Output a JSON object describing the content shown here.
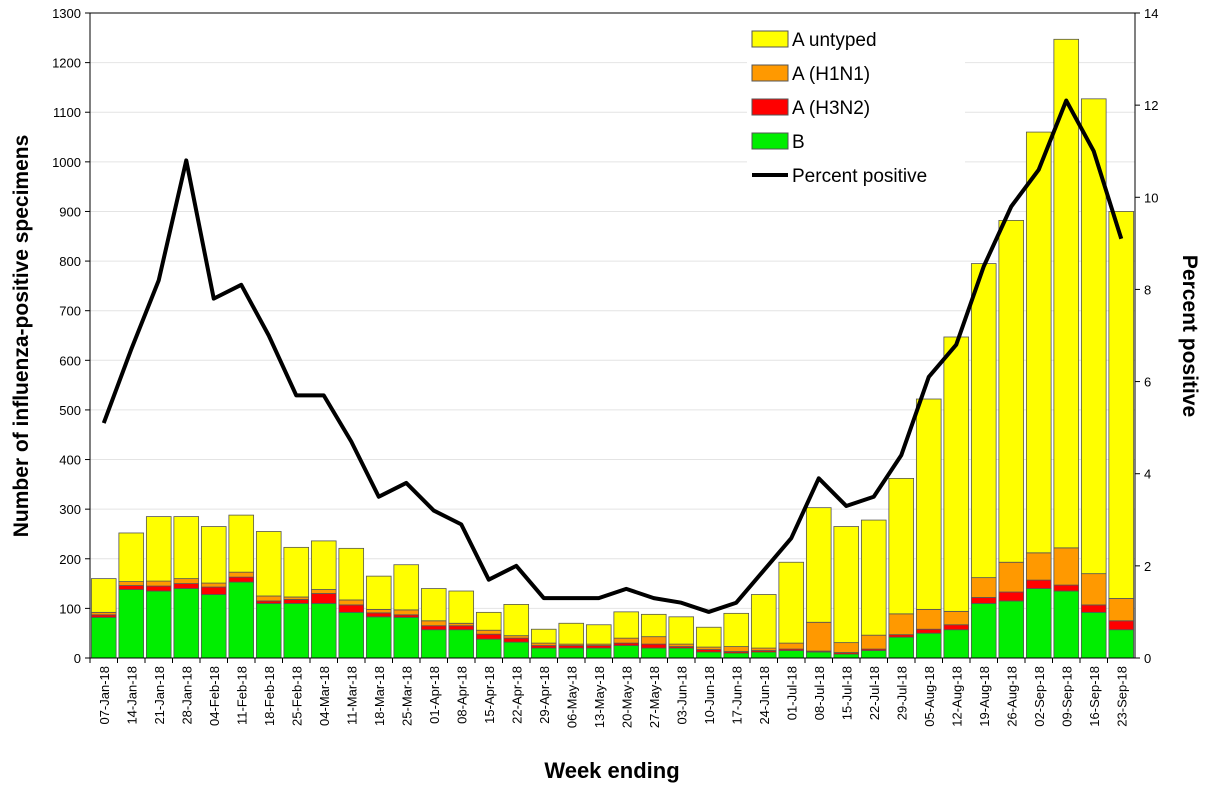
{
  "chart_data": {
    "type": "bar",
    "stacked": true,
    "x_label": "Week ending",
    "y_label": "Number of influenza-positive specimens",
    "y2_label": "Percent positive",
    "categories": [
      "07-Jan-18",
      "14-Jan-18",
      "21-Jan-18",
      "28-Jan-18",
      "04-Feb-18",
      "11-Feb-18",
      "18-Feb-18",
      "25-Feb-18",
      "04-Mar-18",
      "11-Mar-18",
      "18-Mar-18",
      "25-Mar-18",
      "01-Apr-18",
      "08-Apr-18",
      "15-Apr-18",
      "22-Apr-18",
      "29-Apr-18",
      "06-May-18",
      "13-May-18",
      "20-May-18",
      "27-May-18",
      "03-Jun-18",
      "10-Jun-18",
      "17-Jun-18",
      "24-Jun-18",
      "01-Jul-18",
      "08-Jul-18",
      "15-Jul-18",
      "22-Jul-18",
      "29-Jul-18",
      "05-Aug-18",
      "12-Aug-18",
      "19-Aug-18",
      "26-Aug-18",
      "02-Sep-18",
      "09-Sep-18",
      "16-Sep-18",
      "23-Sep-18"
    ],
    "series": [
      {
        "name": "A untyped",
        "color": "#ffff00",
        "values": [
          68,
          98,
          130,
          125,
          114,
          115,
          130,
          100,
          98,
          104,
          67,
          91,
          65,
          65,
          36,
          63,
          28,
          42,
          39,
          53,
          45,
          55,
          40,
          67,
          108,
          163,
          231,
          234,
          232,
          273,
          424,
          553,
          633,
          689,
          848,
          1025,
          957,
          780
        ]
      },
      {
        "name": "A (H1N1)",
        "color": "#ff9900",
        "values": [
          5,
          8,
          10,
          10,
          8,
          10,
          10,
          5,
          8,
          10,
          7,
          10,
          10,
          5,
          8,
          5,
          5,
          3,
          3,
          10,
          15,
          5,
          5,
          10,
          5,
          12,
          58,
          20,
          28,
          42,
          40,
          27,
          40,
          60,
          55,
          75,
          63,
          45
        ]
      },
      {
        "name": "A (H3N2)",
        "color": "#ff0000",
        "values": [
          5,
          8,
          10,
          10,
          15,
          10,
          5,
          8,
          20,
          15,
          8,
          5,
          8,
          8,
          10,
          8,
          5,
          5,
          5,
          5,
          8,
          3,
          5,
          3,
          3,
          3,
          2,
          3,
          3,
          5,
          8,
          10,
          12,
          18,
          17,
          12,
          15,
          18
        ]
      },
      {
        "name": "B",
        "color": "#00ee00",
        "values": [
          82,
          138,
          135,
          140,
          128,
          153,
          110,
          110,
          110,
          92,
          83,
          82,
          57,
          57,
          38,
          32,
          20,
          20,
          20,
          25,
          20,
          20,
          12,
          10,
          12,
          15,
          12,
          8,
          15,
          42,
          50,
          57,
          110,
          115,
          140,
          135,
          92,
          57
        ]
      },
      {
        "name": "Percent positive",
        "type": "line",
        "axis": "y2",
        "color": "#000000",
        "values": [
          5.1,
          6.7,
          8.2,
          10.8,
          7.8,
          8.1,
          7.0,
          5.7,
          5.7,
          4.7,
          3.5,
          3.8,
          3.2,
          2.9,
          1.7,
          2.0,
          1.3,
          1.3,
          1.3,
          1.5,
          1.3,
          1.2,
          1.0,
          1.2,
          1.9,
          2.6,
          3.9,
          3.3,
          3.5,
          4.4,
          6.1,
          6.8,
          8.5,
          9.8,
          10.6,
          12.1,
          11.0,
          9.1
        ]
      }
    ],
    "ylim": [
      0,
      1300
    ],
    "yticks": [
      0,
      100,
      200,
      300,
      400,
      500,
      600,
      700,
      800,
      900,
      1000,
      1100,
      1200,
      1300
    ],
    "y2lim": [
      0,
      14
    ],
    "y2ticks": [
      0,
      2,
      4,
      6,
      8,
      10,
      12,
      14
    ],
    "grid": true
  }
}
